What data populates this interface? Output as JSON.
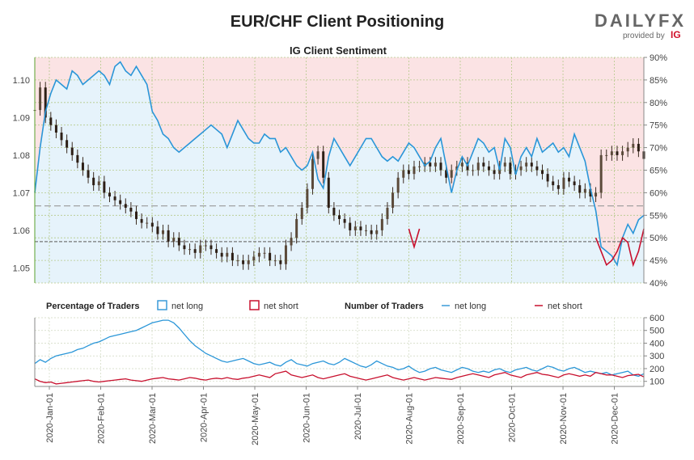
{
  "header": {
    "title": "EUR/CHF Client Positioning",
    "logo_text": "DAILYFX",
    "logo_provided": "provided by",
    "logo_brand": "IG"
  },
  "chart_data": [
    {
      "type": "line",
      "subtitle": "IG Client Sentiment",
      "x_labels": [
        "2020-Jan-01",
        "2020-Feb-01",
        "2020-Mar-01",
        "2020-Apr-01",
        "2020-May-01",
        "2020-Jun-01",
        "2020-Jul-01",
        "2020-Aug-01",
        "2020-Sep-01",
        "2020-Oct-01",
        "2020-Nov-01",
        "2020-Dec-01"
      ],
      "ylim_price": [
        1.046,
        1.106
      ],
      "ytick_price": [
        "1.05",
        "1.06",
        "1.07",
        "1.08",
        "1.09",
        "1.10"
      ],
      "ylim_pct": [
        40,
        90
      ],
      "ytick_pct": [
        "40%",
        "45%",
        "50%",
        "55%",
        "60%",
        "65%",
        "70%",
        "75%",
        "80%",
        "85%",
        "90%"
      ],
      "price_reference_lines": [
        1.0665,
        1.057
      ],
      "percent_long": [
        60,
        70,
        78,
        82,
        85,
        84,
        83,
        87,
        86,
        84,
        85,
        86,
        87,
        86,
        84,
        88,
        89,
        87,
        86,
        88,
        86,
        84,
        78,
        76,
        73,
        72,
        70,
        69,
        70,
        71,
        72,
        73,
        74,
        75,
        74,
        73,
        70,
        73,
        76,
        74,
        72,
        71,
        71,
        73,
        72,
        72,
        69,
        70,
        68,
        66,
        65,
        66,
        69,
        63,
        61,
        68,
        72,
        70,
        68,
        66,
        68,
        70,
        72,
        72,
        70,
        68,
        67,
        68,
        67,
        69,
        71,
        70,
        68,
        66,
        67,
        70,
        72,
        66,
        60,
        65,
        68,
        66,
        69,
        72,
        71,
        69,
        70,
        65,
        72,
        70,
        64,
        68,
        70,
        68,
        72,
        69,
        70,
        71,
        69,
        70,
        68,
        73,
        70,
        67,
        61,
        56,
        48,
        47,
        46,
        44,
        50,
        53,
        51,
        54,
        55
      ],
      "percent_short_segments": [
        {
          "from_index": 70,
          "to_index": 72,
          "values": [
            52,
            48,
            52
          ]
        },
        {
          "from_index": 105,
          "to_index": 114,
          "values": [
            50,
            47,
            44,
            45,
            47,
            50,
            49,
            44,
            47,
            52
          ]
        }
      ],
      "price_close": [
        1.092,
        1.098,
        1.09,
        1.088,
        1.086,
        1.084,
        1.082,
        1.08,
        1.078,
        1.076,
        1.074,
        1.072,
        1.073,
        1.07,
        1.069,
        1.068,
        1.067,
        1.066,
        1.065,
        1.063,
        1.062,
        1.062,
        1.061,
        1.059,
        1.06,
        1.057,
        1.058,
        1.056,
        1.055,
        1.055,
        1.054,
        1.056,
        1.056,
        1.055,
        1.054,
        1.053,
        1.054,
        1.052,
        1.052,
        1.051,
        1.052,
        1.053,
        1.054,
        1.054,
        1.052,
        1.052,
        1.051,
        1.056,
        1.058,
        1.063,
        1.066,
        1.071,
        1.079,
        1.081,
        1.074,
        1.066,
        1.064,
        1.063,
        1.062,
        1.06,
        1.061,
        1.06,
        1.06,
        1.059,
        1.06,
        1.063,
        1.066,
        1.07,
        1.074,
        1.076,
        1.075,
        1.077,
        1.077,
        1.078,
        1.077,
        1.078,
        1.076,
        1.074,
        1.076,
        1.077,
        1.078,
        1.076,
        1.076,
        1.078,
        1.077,
        1.076,
        1.075,
        1.077,
        1.078,
        1.075,
        1.076,
        1.077,
        1.078,
        1.077,
        1.076,
        1.075,
        1.073,
        1.072,
        1.071,
        1.074,
        1.073,
        1.072,
        1.07,
        1.071,
        1.069,
        1.07,
        1.08,
        1.08,
        1.081,
        1.08,
        1.081,
        1.082,
        1.083,
        1.081,
        1.079
      ]
    },
    {
      "type": "line",
      "legend_percentage": {
        "title": "Percentage of Traders",
        "long": "net long",
        "short": "net short"
      },
      "legend_number": {
        "title": "Number of Traders",
        "long": "net long",
        "short": "net short"
      },
      "ylim": [
        60,
        600
      ],
      "ytick": [
        "100",
        "200",
        "300",
        "400",
        "500",
        "600"
      ],
      "series": [
        {
          "name": "net long",
          "values": [
            240,
            270,
            250,
            280,
            300,
            310,
            320,
            330,
            350,
            360,
            380,
            400,
            410,
            430,
            450,
            460,
            470,
            480,
            490,
            500,
            520,
            540,
            560,
            570,
            580,
            580,
            560,
            520,
            470,
            420,
            380,
            350,
            320,
            300,
            280,
            260,
            250,
            260,
            270,
            280,
            260,
            240,
            230,
            240,
            250,
            230,
            220,
            250,
            270,
            240,
            230,
            220,
            240,
            250,
            260,
            240,
            230,
            250,
            280,
            260,
            240,
            220,
            210,
            230,
            260,
            240,
            220,
            210,
            190,
            200,
            220,
            190,
            170,
            180,
            200,
            210,
            190,
            180,
            170,
            190,
            210,
            200,
            180,
            170,
            180,
            170,
            190,
            200,
            180,
            170,
            190,
            200,
            210,
            190,
            180,
            200,
            220,
            210,
            190,
            180,
            200,
            210,
            190,
            170,
            180,
            170,
            160,
            170,
            150,
            160,
            170,
            180,
            150,
            140,
            160
          ]
        },
        {
          "name": "net short",
          "values": [
            120,
            100,
            90,
            95,
            80,
            85,
            90,
            95,
            100,
            105,
            110,
            100,
            95,
            100,
            105,
            110,
            115,
            120,
            110,
            105,
            100,
            110,
            120,
            125,
            130,
            120,
            115,
            110,
            120,
            130,
            125,
            115,
            110,
            120,
            125,
            120,
            130,
            120,
            115,
            125,
            130,
            140,
            150,
            140,
            130,
            160,
            170,
            180,
            150,
            140,
            130,
            140,
            150,
            130,
            120,
            130,
            140,
            150,
            160,
            140,
            130,
            120,
            110,
            120,
            130,
            140,
            150,
            130,
            120,
            110,
            120,
            130,
            120,
            110,
            120,
            130,
            125,
            120,
            115,
            130,
            140,
            150,
            160,
            150,
            140,
            130,
            150,
            160,
            170,
            150,
            140,
            130,
            150,
            160,
            170,
            155,
            150,
            140,
            130,
            150,
            160,
            150,
            140,
            150,
            140,
            170,
            160,
            150,
            150,
            140,
            130,
            145,
            150,
            155,
            135
          ]
        }
      ]
    }
  ]
}
